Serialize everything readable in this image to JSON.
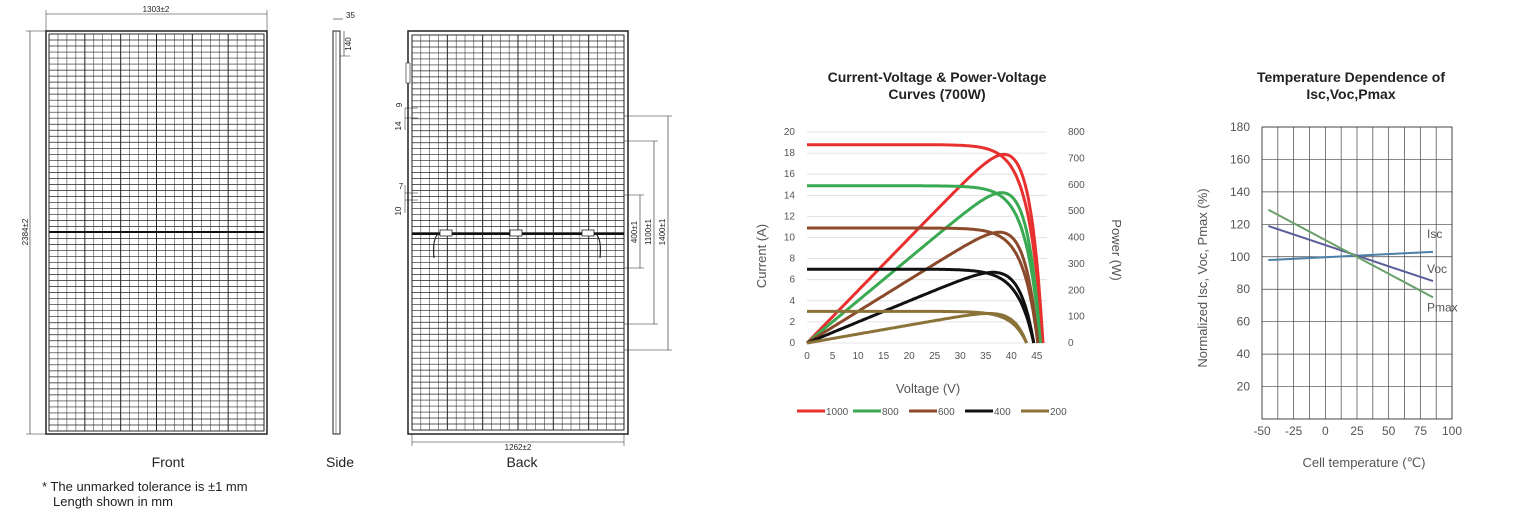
{
  "drawing": {
    "front": {
      "caption": "Front",
      "width_label": "1303±2",
      "height_label": "2384±2"
    },
    "side": {
      "caption": "Side",
      "depth_label": "35",
      "step_label": "140"
    },
    "back": {
      "caption": "Back",
      "bottom_label": "1262±2",
      "left_top_a": "9",
      "left_top_b": "14",
      "left_mid_a": "7",
      "left_mid_b": "10",
      "dim_400": "400±1",
      "dim_1100": "1100±1",
      "dim_1400": "1400±1"
    },
    "note_line1": "* The unmarked tolerance is ±1 mm",
    "note_line2": "Length shown in mm"
  },
  "iv_chart": {
    "title_line1": "Current-Voltage & Power-Voltage",
    "title_line2": "Curves  (700W)",
    "xlabel": "Voltage (V)",
    "ylabel_left": "Current (A)",
    "ylabel_right": "Power (W)"
  },
  "temp_chart": {
    "title_line1": "Temperature Dependence of",
    "title_line2": "Isc,Voc,Pmax",
    "xlabel": "Cell temperature  (℃)",
    "ylabel": "Normalized Isc, Voc, Pmax (%)"
  },
  "chart_data": [
    {
      "type": "line",
      "title": "Current-Voltage & Power-Voltage Curves  (700W)",
      "xlabel": "Voltage (V)",
      "ylabel": "Current (A)",
      "y2label": "Power (W)",
      "xlim": [
        0,
        47
      ],
      "ylim": [
        0,
        20
      ],
      "y2lim": [
        0,
        800
      ],
      "x_ticks": [
        0,
        5,
        10,
        15,
        20,
        25,
        30,
        35,
        40,
        45
      ],
      "y_ticks": [
        0,
        2,
        4,
        6,
        8,
        10,
        12,
        14,
        16,
        18,
        20
      ],
      "y2_ticks": [
        0,
        100,
        200,
        300,
        400,
        500,
        600,
        700,
        800
      ],
      "grid": true,
      "legend_position": "bottom",
      "series": [
        {
          "name": "1000",
          "color": "#e8302f",
          "isc": 18.8,
          "voc": 46.2,
          "vmp": 38.8,
          "pmax": 715
        },
        {
          "name": "800",
          "color": "#3aaa52",
          "isc": 14.9,
          "voc": 45.7,
          "vmp": 38.3,
          "pmax": 570
        },
        {
          "name": "600",
          "color": "#8b4a2b",
          "isc": 10.9,
          "voc": 45.2,
          "vmp": 37.8,
          "pmax": 420
        },
        {
          "name": "400",
          "color": "#111111",
          "isc": 7.0,
          "voc": 44.4,
          "vmp": 36.6,
          "pmax": 268
        },
        {
          "name": "200",
          "color": "#8a7238",
          "isc": 3.0,
          "voc": 43.0,
          "vmp": 35.8,
          "pmax": 112
        }
      ]
    },
    {
      "type": "line",
      "title": "Temperature Dependence of Isc,Voc,Pmax",
      "xlabel": "Cell temperature  (℃)",
      "ylabel": "Normalized Isc, Voc, Pmax (%)",
      "xlim": [
        -50,
        100
      ],
      "ylim": [
        0,
        180
      ],
      "x_ticks": [
        -50,
        -25,
        0,
        25,
        50,
        75,
        100
      ],
      "y_ticks": [
        20,
        40,
        60,
        80,
        100,
        120,
        140,
        160,
        180
      ],
      "grid": true,
      "series": [
        {
          "name": "Isc",
          "color": "#4a7fa8",
          "x": [
            -45,
            85
          ],
          "y": [
            98,
            103
          ]
        },
        {
          "name": "Voc",
          "color": "#5a5f9a",
          "x": [
            -45,
            85
          ],
          "y": [
            119,
            85
          ]
        },
        {
          "name": "Pmax",
          "color": "#6aa06a",
          "x": [
            -45,
            85
          ],
          "y": [
            129,
            75
          ]
        }
      ]
    }
  ]
}
